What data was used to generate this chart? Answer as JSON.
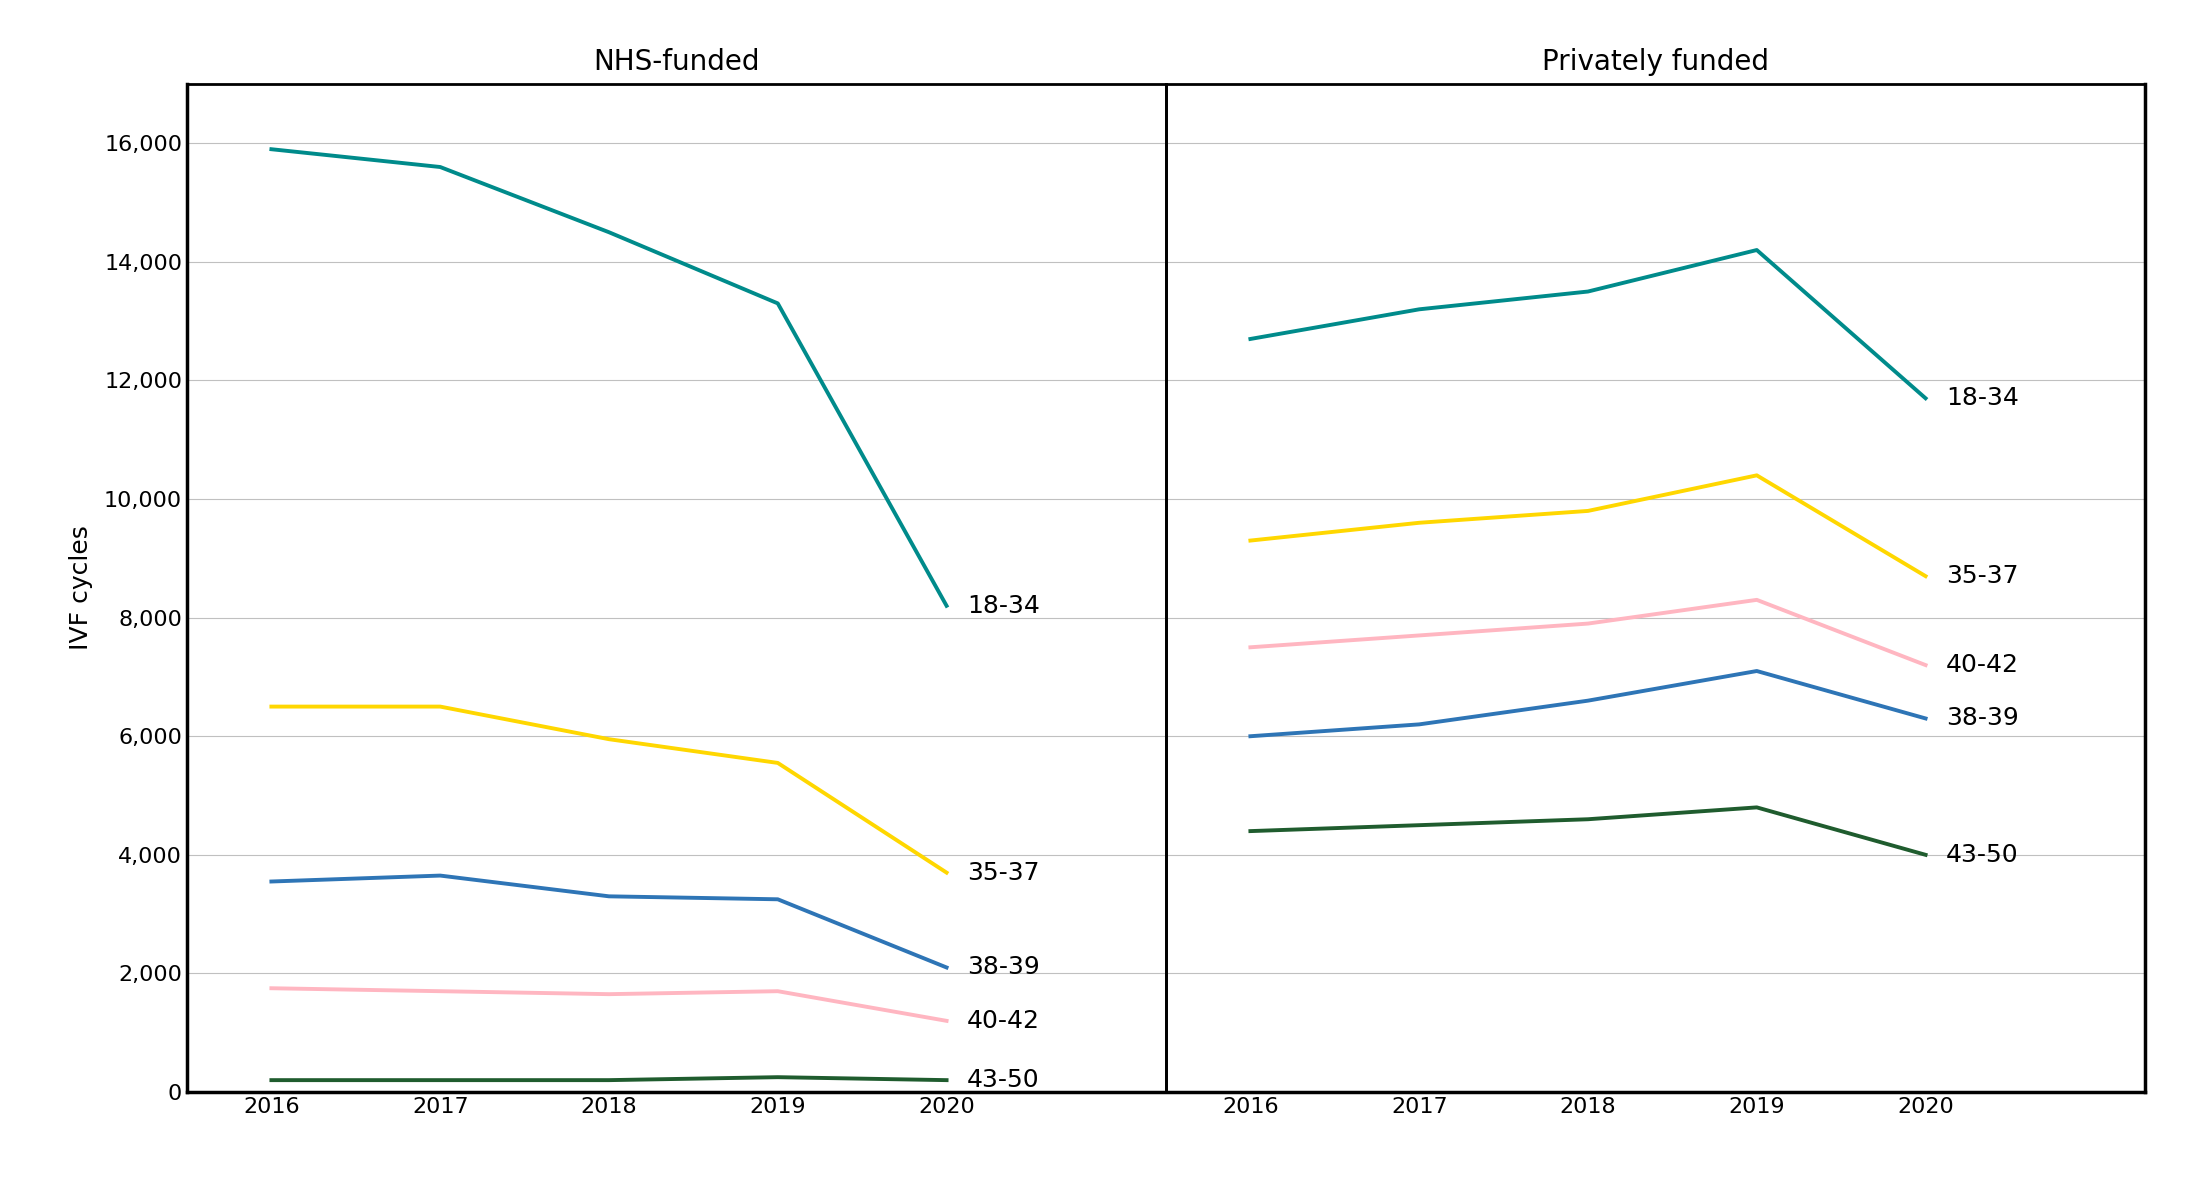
{
  "years": [
    2016,
    2017,
    2018,
    2019,
    2020
  ],
  "nhs": {
    "18-34": [
      15900,
      15600,
      14500,
      13300,
      8200
    ],
    "35-37": [
      6500,
      6500,
      5950,
      5550,
      3700
    ],
    "38-39": [
      3550,
      3650,
      3300,
      3250,
      2100
    ],
    "40-42": [
      1750,
      1700,
      1650,
      1700,
      1200
    ],
    "43-50": [
      200,
      200,
      200,
      250,
      200
    ]
  },
  "private": {
    "18-34": [
      12700,
      13200,
      13500,
      14200,
      11700
    ],
    "35-37": [
      9300,
      9600,
      9800,
      10400,
      8700
    ],
    "40-42": [
      7500,
      7700,
      7900,
      8300,
      7200
    ],
    "38-39": [
      6000,
      6200,
      6600,
      7100,
      6300
    ],
    "43-50": [
      4400,
      4500,
      4600,
      4800,
      4000
    ]
  },
  "colors": {
    "18-34": "#008B8B",
    "35-37": "#FFD700",
    "38-39": "#2E75B6",
    "40-42": "#FFB6C1",
    "43-50": "#1F5C2E"
  },
  "nhs_title": "NHS-funded",
  "private_title": "Privately funded",
  "ylabel": "IVF cycles",
  "ylim": [
    0,
    17000
  ],
  "yticks": [
    0,
    2000,
    4000,
    6000,
    8000,
    10000,
    12000,
    14000,
    16000
  ],
  "line_width": 2.8,
  "label_fontsize": 18,
  "tick_fontsize": 16,
  "title_fontsize": 20,
  "ylabel_fontsize": 18,
  "nhs_label_offsets": {
    "18-34": 0,
    "35-37": 0,
    "38-39": 0,
    "40-42": 0,
    "43-50": 0
  },
  "nhs_age_order": [
    "18-34",
    "35-37",
    "38-39",
    "40-42",
    "43-50"
  ],
  "private_age_order": [
    "18-34",
    "35-37",
    "40-42",
    "38-39",
    "43-50"
  ]
}
